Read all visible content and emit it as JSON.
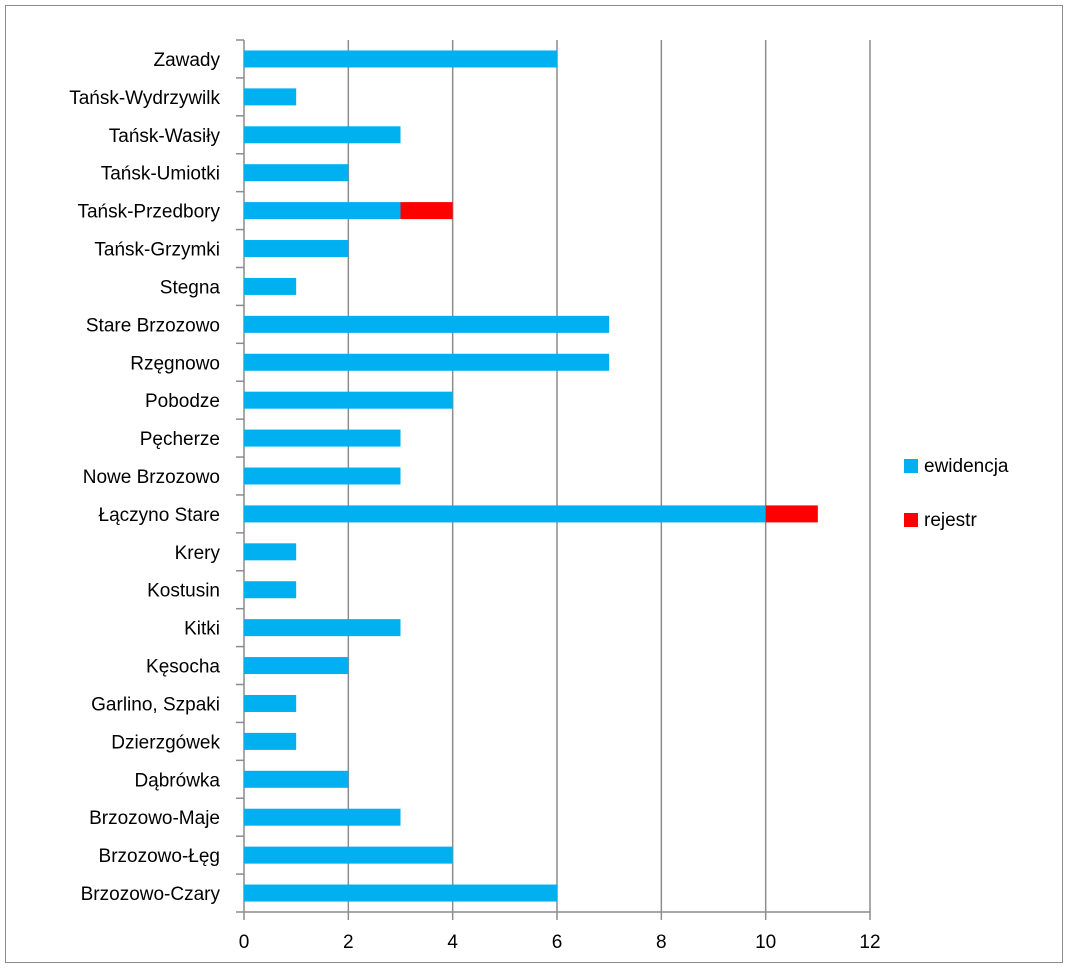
{
  "chart_data": {
    "type": "bar",
    "orientation": "horizontal",
    "stacked": true,
    "categories": [
      "Zawady",
      "Tańsk-Wydrzywilk",
      "Tańsk-Wasiły",
      "Tańsk-Umiotki",
      "Tańsk-Przedbory",
      "Tańsk-Grzymki",
      "Stegna",
      "Stare Brzozowo",
      "Rzęgnowo",
      "Pobodze",
      "Pęcherze",
      "Nowe Brzozowo",
      "Łączyno Stare",
      "Krery",
      "Kostusin",
      "Kitki",
      "Kęsocha",
      "Garlino, Szpaki",
      "Dzierzgówek",
      "Dąbrówka",
      "Brzozowo-Maje",
      "Brzozowo-Łęg",
      "Brzozowo-Czary"
    ],
    "series": [
      {
        "name": "ewidencja",
        "color": "#00b0f0",
        "values": [
          6,
          1,
          3,
          2,
          3,
          2,
          1,
          7,
          7,
          4,
          3,
          3,
          10,
          1,
          1,
          3,
          2,
          1,
          1,
          2,
          3,
          4,
          6
        ]
      },
      {
        "name": "rejestr",
        "color": "#ff0000",
        "values": [
          0,
          0,
          0,
          0,
          1,
          0,
          0,
          0,
          0,
          0,
          0,
          0,
          1,
          0,
          0,
          0,
          0,
          0,
          0,
          0,
          0,
          0,
          0
        ]
      }
    ],
    "xlim": [
      0,
      12
    ],
    "x_ticks": [
      0,
      2,
      4,
      6,
      8,
      10,
      12
    ],
    "grid": "vertical",
    "legend": "right",
    "title": "",
    "xlabel": "",
    "ylabel": ""
  }
}
